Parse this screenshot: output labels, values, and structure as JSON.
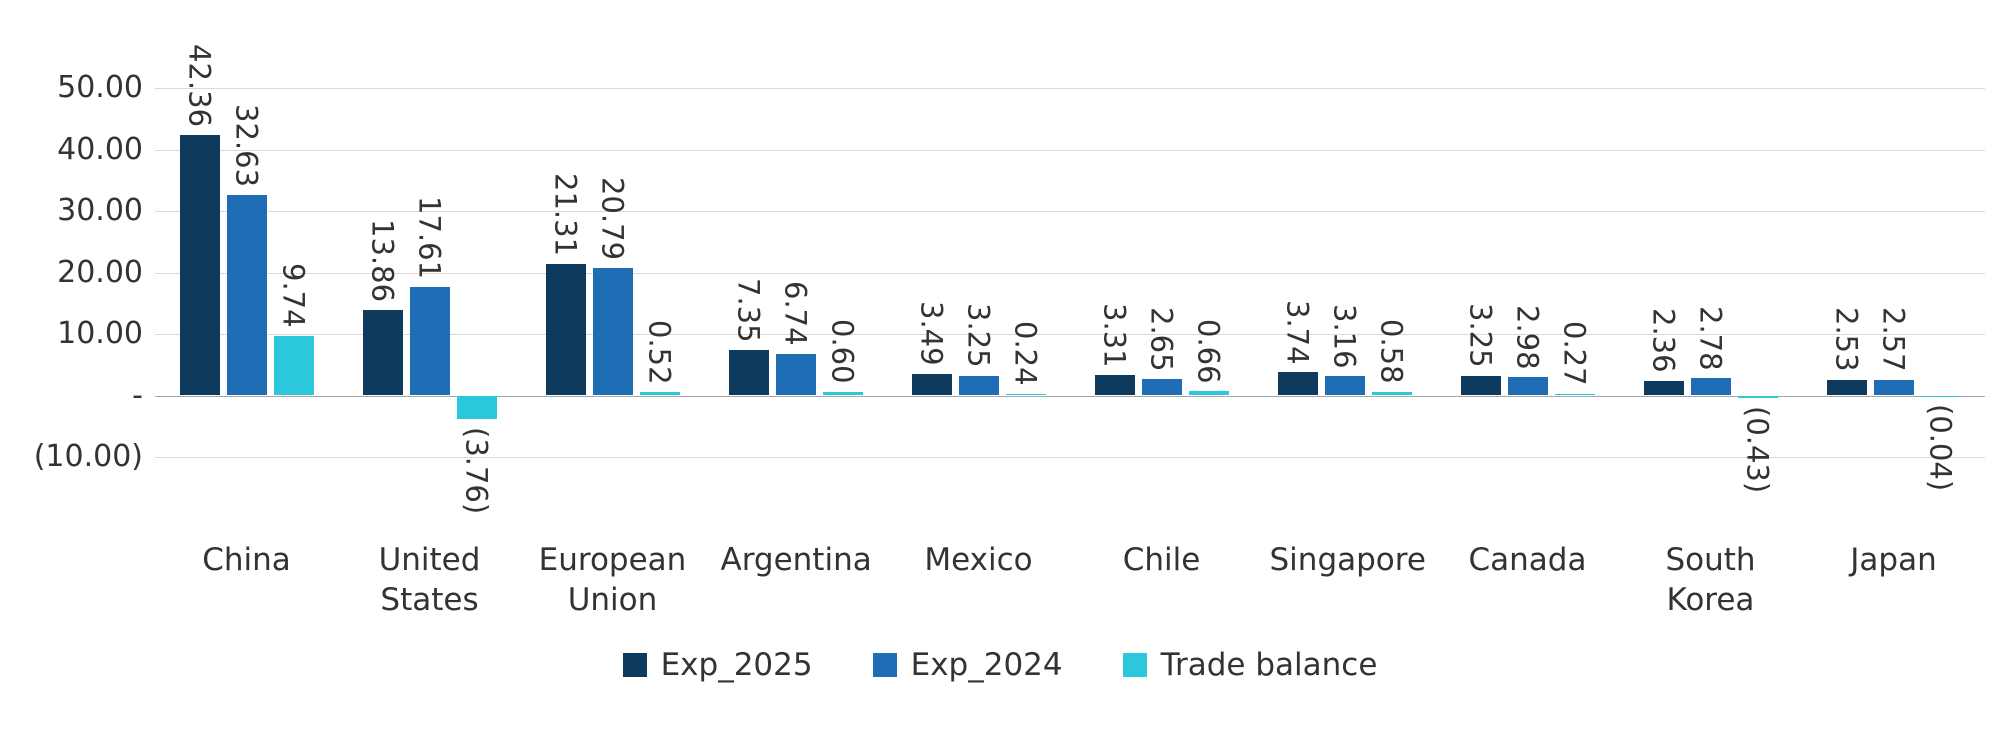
{
  "chart_data": {
    "type": "bar",
    "title": "",
    "xlabel": "",
    "ylabel": "",
    "grid": true,
    "categories": [
      "China",
      "United States",
      "European Union",
      "Argentina",
      "Mexico",
      "Chile",
      "Singapore",
      "Canada",
      "South Korea",
      "Japan"
    ],
    "series": [
      {
        "name": "Exp_2025",
        "color": "#0e3a5e",
        "values": [
          42.36,
          13.86,
          21.31,
          7.35,
          3.49,
          3.31,
          3.74,
          3.25,
          2.36,
          2.53
        ],
        "labels": [
          "42.36",
          "13.86",
          "21.31",
          "7.35",
          "3.49",
          "3.31",
          "3.74",
          "3.25",
          "2.36",
          "2.53"
        ]
      },
      {
        "name": "Exp_2024",
        "color": "#1f6db4",
        "values": [
          32.63,
          17.61,
          20.79,
          6.74,
          3.25,
          2.65,
          3.16,
          2.98,
          2.78,
          2.57
        ],
        "labels": [
          "32.63",
          "17.61",
          "20.79",
          "6.74",
          "3.25",
          "2.65",
          "3.16",
          "2.98",
          "2.78",
          "2.57"
        ]
      },
      {
        "name": "Trade balance",
        "color": "#2bc8dc",
        "values": [
          9.74,
          -3.76,
          0.52,
          0.6,
          0.24,
          0.66,
          0.58,
          0.27,
          -0.43,
          -0.04
        ],
        "labels": [
          "9.74",
          "(3.76)",
          "0.52",
          "0.60",
          "0.24",
          "0.66",
          "0.58",
          "0.27",
          "(0.43)",
          "(0.04)"
        ]
      }
    ],
    "y_axis": {
      "min": -10,
      "max": 50,
      "ticks": [
        50,
        40,
        30,
        20,
        10,
        0,
        -10
      ],
      "tick_labels": [
        "50.00",
        "40.00",
        "30.00",
        "20.00",
        "10.00",
        "-",
        "(10.00)"
      ]
    },
    "legend": {
      "position": "bottom",
      "items": [
        "Exp_2025",
        "Exp_2024",
        "Trade balance"
      ]
    }
  }
}
